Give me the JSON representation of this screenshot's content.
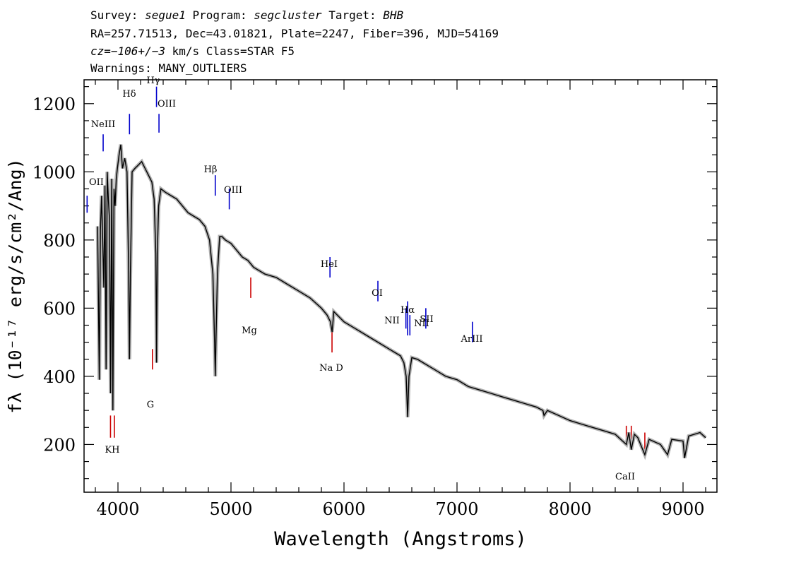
{
  "header": {
    "line1": {
      "survey_label": "Survey:",
      "survey": "segue1",
      "program_label": "Program:",
      "program": "segcluster",
      "target_label": "Target:",
      "target": "BHB"
    },
    "line2": "RA=257.71513, Dec=43.01821, Plate=2247, Fiber=396, MJD=54169",
    "line3": {
      "cz": "cz=−106+/−3",
      "rest": "km/s Class=STAR F5"
    },
    "line4": "Warnings: MANY_OUTLIERS"
  },
  "chart_data": {
    "type": "line",
    "xlabel": "Wavelength (Angstroms)",
    "ylabel": "fλ (10⁻¹⁷ erg/s/cm²/Ang)",
    "xlim": [
      3700,
      9300
    ],
    "ylim": [
      60,
      1270
    ],
    "xticks": [
      4000,
      5000,
      6000,
      7000,
      8000,
      9000
    ],
    "xtick_labels": [
      "4000",
      "5000",
      "6000",
      "7000",
      "8000",
      "9000"
    ],
    "yticks": [
      200,
      400,
      600,
      800,
      1000,
      1200
    ],
    "ytick_labels": [
      "200",
      "400",
      "600",
      "800",
      "1000",
      "1200"
    ],
    "grid": false,
    "series": [
      {
        "color": "#000000",
        "x": [
          3820,
          3835,
          3845,
          3855,
          3865,
          3875,
          3885,
          3895,
          3905,
          3915,
          3925,
          3935,
          3945,
          3955,
          3965,
          3975,
          3985,
          3995,
          4010,
          4025,
          4040,
          4060,
          4080,
          4095,
          4102,
          4110,
          4125,
          4150,
          4180,
          4210,
          4240,
          4270,
          4300,
          4320,
          4335,
          4341,
          4348,
          4360,
          4380,
          4420,
          4470,
          4520,
          4570,
          4620,
          4670,
          4720,
          4770,
          4810,
          4840,
          4855,
          4861,
          4868,
          4880,
          4900,
          4920,
          4950,
          5000,
          5050,
          5100,
          5150,
          5200,
          5300,
          5400,
          5500,
          5600,
          5700,
          5800,
          5850,
          5880,
          5895,
          5910,
          6000,
          6100,
          6200,
          6300,
          6400,
          6450,
          6500,
          6530,
          6550,
          6563,
          6575,
          6600,
          6650,
          6700,
          6800,
          6900,
          7000,
          7100,
          7200,
          7300,
          7400,
          7500,
          7600,
          7700,
          7760,
          7770,
          7800,
          7900,
          8000,
          8100,
          8200,
          8300,
          8400,
          8498,
          8520,
          8542,
          8570,
          8600,
          8662,
          8700,
          8800,
          8863,
          8900,
          9000,
          9014,
          9050,
          9100,
          9150,
          9200
        ],
        "y": [
          840,
          390,
          830,
          930,
          800,
          660,
          960,
          420,
          1000,
          920,
          860,
          350,
          980,
          300,
          950,
          900,
          980,
          1010,
          1050,
          1080,
          1010,
          1040,
          1000,
          700,
          450,
          700,
          1000,
          1010,
          1020,
          1030,
          1010,
          990,
          970,
          920,
          760,
          440,
          760,
          900,
          950,
          940,
          930,
          920,
          900,
          880,
          870,
          860,
          840,
          800,
          700,
          500,
          400,
          520,
          700,
          810,
          810,
          800,
          790,
          770,
          750,
          740,
          720,
          700,
          690,
          670,
          650,
          630,
          600,
          580,
          560,
          530,
          590,
          560,
          540,
          520,
          500,
          480,
          470,
          460,
          440,
          400,
          280,
          400,
          455,
          450,
          440,
          420,
          400,
          390,
          370,
          360,
          350,
          340,
          330,
          320,
          310,
          300,
          285,
          300,
          285,
          270,
          260,
          250,
          240,
          230,
          200,
          235,
          185,
          230,
          220,
          170,
          215,
          200,
          170,
          215,
          210,
          160,
          225,
          230,
          235,
          220
        ]
      }
    ],
    "annotations": [
      {
        "label": "OII",
        "wavelength": 3727,
        "color": "#0000cc"
      },
      {
        "label": "NeIII",
        "wavelength": 3869,
        "color": "#0000cc"
      },
      {
        "label": "Hδ",
        "wavelength": 4102,
        "color": "#0000cc"
      },
      {
        "label": "Hγ",
        "wavelength": 4341,
        "color": "#0000cc"
      },
      {
        "label": "OIII",
        "wavelength": 4363,
        "color": "#0000cc"
      },
      {
        "label": "Hβ",
        "wavelength": 4861,
        "color": "#0000cc"
      },
      {
        "label": "OIII",
        "wavelength": 4985,
        "color": "#0000cc"
      },
      {
        "label": "HeI",
        "wavelength": 5876,
        "color": "#0000cc"
      },
      {
        "label": "OI",
        "wavelength": 6300,
        "color": "#0000cc"
      },
      {
        "label": "NII",
        "wavelength": 6548,
        "color": "#0000cc"
      },
      {
        "label": "Hα",
        "wavelength": 6563,
        "color": "#0000cc"
      },
      {
        "label": "NII",
        "wavelength": 6583,
        "color": "#0000cc"
      },
      {
        "label": "SII",
        "wavelength": 6724,
        "color": "#0000cc"
      },
      {
        "label": "ArIII",
        "wavelength": 7136,
        "color": "#0000cc"
      },
      {
        "label": "K",
        "wavelength": 3934,
        "color": "#cc0000"
      },
      {
        "label": "H",
        "wavelength": 3968,
        "color": "#cc0000"
      },
      {
        "label": "G",
        "wavelength": 4305,
        "color": "#cc0000"
      },
      {
        "label": "Mg",
        "wavelength": 5175,
        "color": "#cc0000"
      },
      {
        "label": "Na D",
        "wavelength": 5894,
        "color": "#cc0000"
      },
      {
        "label": "CaII",
        "wavelength": 8498,
        "color": "#cc0000"
      },
      {
        "label": "CaII",
        "wavelength": 8542,
        "color": "#cc0000"
      },
      {
        "label": "CaII",
        "wavelength": 8662,
        "color": "#cc0000"
      }
    ]
  }
}
